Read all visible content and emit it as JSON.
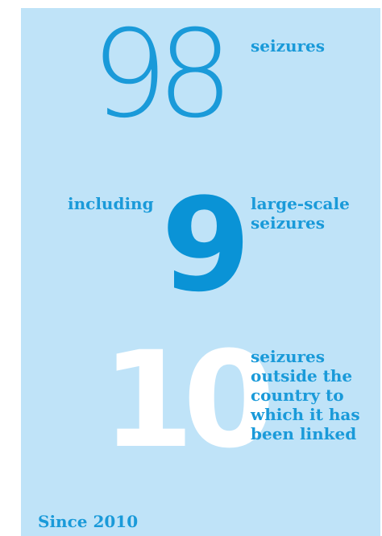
{
  "stats": {
    "total": {
      "value": "98",
      "label": "seizures"
    },
    "large_scale": {
      "prefix": "including",
      "value": "9",
      "label": "large-scale seizures"
    },
    "outside": {
      "value": "10",
      "label": "seizures outside the country to which it has been linked"
    }
  },
  "footer": {
    "text": "Since 2010"
  },
  "colors": {
    "panel_background": "#bfe3f8",
    "accent_blue": "#1a9ad9",
    "white_number": "#ffffff"
  }
}
